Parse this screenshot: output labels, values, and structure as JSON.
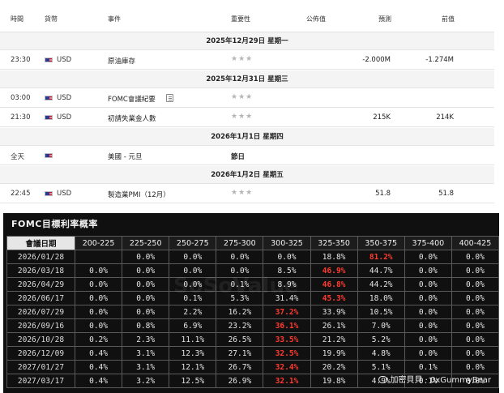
{
  "calendar": {
    "headers": {
      "time": "時間",
      "currency": "貨幣",
      "event": "事件",
      "importance": "重要性",
      "actual": "公佈值",
      "forecast": "預測",
      "previous": "前值"
    },
    "dates": [
      "2025年12月29日 星期一",
      "2025年12月31日 星期三",
      "2026年1月1日 星期四",
      "2026年1月2日 星期五"
    ],
    "stars": "★★★",
    "rows": [
      {
        "time": "23:30",
        "currency": "USD",
        "event": "原油庫存",
        "actual": "",
        "forecast": "-2.000M",
        "previous": "-1.274M"
      },
      {
        "time": "03:00",
        "currency": "USD",
        "event": "FOMC會議紀要",
        "actual": "",
        "forecast": "",
        "previous": ""
      },
      {
        "time": "21:30",
        "currency": "USD",
        "event": "初請失業金人數",
        "actual": "",
        "forecast": "215K",
        "previous": "214K"
      },
      {
        "time": "全天",
        "currency": "",
        "event": "美國 - 元旦",
        "holiday": "節日"
      },
      {
        "time": "22:45",
        "currency": "USD",
        "event": "製造業PMI（12月）",
        "actual": "",
        "forecast": "51.8",
        "previous": "51.8"
      }
    ]
  },
  "fomc": {
    "title": "FOMC目標利率概率",
    "headers": [
      "會議日期",
      "200-225",
      "225-250",
      "250-275",
      "275-300",
      "300-325",
      "325-350",
      "350-375",
      "375-400",
      "400-425"
    ],
    "rows": [
      [
        "2026/01/28",
        "",
        "0.0%",
        "0.0%",
        "0.0%",
        "0.0%",
        "18.8%",
        "81.2%",
        "0.0%",
        "0.0%"
      ],
      [
        "2026/03/18",
        "0.0%",
        "0.0%",
        "0.0%",
        "0.0%",
        "8.5%",
        "46.9%",
        "44.7%",
        "0.0%",
        "0.0%"
      ],
      [
        "2026/04/29",
        "0.0%",
        "0.0%",
        "0.0%",
        "0.1%",
        "8.9%",
        "46.8%",
        "44.2%",
        "0.0%",
        "0.0%"
      ],
      [
        "2026/06/17",
        "0.0%",
        "0.0%",
        "0.1%",
        "5.3%",
        "31.4%",
        "45.3%",
        "18.0%",
        "0.0%",
        "0.0%"
      ],
      [
        "2026/07/29",
        "0.0%",
        "0.0%",
        "2.2%",
        "16.2%",
        "37.2%",
        "33.9%",
        "10.5%",
        "0.0%",
        "0.0%"
      ],
      [
        "2026/09/16",
        "0.0%",
        "0.8%",
        "6.9%",
        "23.2%",
        "36.1%",
        "26.1%",
        "7.0%",
        "0.0%",
        "0.0%"
      ],
      [
        "2026/10/28",
        "0.2%",
        "2.3%",
        "11.1%",
        "26.5%",
        "33.5%",
        "21.2%",
        "5.2%",
        "0.0%",
        "0.0%"
      ],
      [
        "2026/12/09",
        "0.4%",
        "3.1%",
        "12.3%",
        "27.1%",
        "32.5%",
        "19.9%",
        "4.8%",
        "0.0%",
        "0.0%"
      ],
      [
        "2027/01/27",
        "0.4%",
        "3.1%",
        "12.1%",
        "26.7%",
        "32.4%",
        "20.2%",
        "5.1%",
        "0.1%",
        "0.0%"
      ],
      [
        "2027/03/17",
        "0.4%",
        "3.2%",
        "12.5%",
        "26.9%",
        "32.1%",
        "19.8%",
        "4.9%",
        "0.1%",
        "0.0%"
      ]
    ],
    "highlight": [
      [
        0,
        7
      ],
      [
        1,
        6
      ],
      [
        2,
        6
      ],
      [
        3,
        6
      ],
      [
        4,
        5
      ],
      [
        5,
        5
      ],
      [
        6,
        5
      ],
      [
        7,
        5
      ],
      [
        8,
        5
      ],
      [
        9,
        5
      ]
    ],
    "watermark": "SoSoValue",
    "credit": "加密貝貝 · 0xGummyBear",
    "highlight_color": "#ff3b30"
  }
}
